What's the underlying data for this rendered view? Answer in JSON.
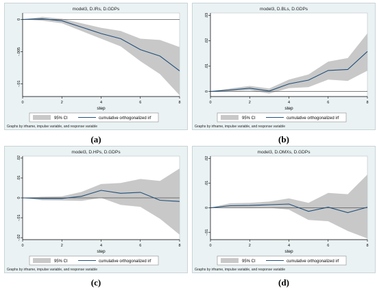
{
  "legend": {
    "ci_label": "95% CI",
    "irf_label": "cumulative orthogonalized irf"
  },
  "x_axis_title": "step",
  "footnote": "Graphs by irfname, impulse variable, and response variable",
  "colors": {
    "panel_bg": "#eaf2f3",
    "plot_bg": "#ffffff",
    "ci_fill": "#c8c8c8",
    "irf_line": "#1f4e79",
    "zero_line": "#555555",
    "axis": "#000000"
  },
  "chart_data": [
    {
      "type": "line",
      "caption": "(a)",
      "title": "model3, D.IRs, D.GDPs",
      "x": [
        0,
        1,
        2,
        3,
        4,
        5,
        6,
        7,
        8
      ],
      "xticks": [
        0,
        2,
        4,
        6,
        8
      ],
      "ylim": [
        -0.012,
        0.001
      ],
      "yticks": [
        0,
        -0.005,
        -0.01
      ],
      "ytick_labels": [
        "0",
        "-.005",
        "-.01"
      ],
      "series": [
        {
          "values": [
            0,
            0.0001,
            -0.0002,
            -0.0012,
            -0.0022,
            -0.003,
            -0.0047,
            -0.0057,
            -0.008
          ]
        }
      ],
      "ci_lower": [
        0,
        -0.0002,
        -0.0006,
        -0.0018,
        -0.003,
        -0.0042,
        -0.0065,
        -0.0085,
        -0.0118
      ],
      "ci_upper": [
        0,
        0.0004,
        0.0001,
        -0.0006,
        -0.0013,
        -0.0018,
        -0.003,
        -0.0032,
        -0.0043
      ]
    },
    {
      "type": "line",
      "caption": "(b)",
      "title": "model3, D.BLs, D.GDPs",
      "x": [
        0,
        1,
        2,
        3,
        4,
        5,
        6,
        7,
        8
      ],
      "xticks": [
        0,
        2,
        4,
        6,
        8
      ],
      "ylim": [
        -0.002,
        0.031
      ],
      "yticks": [
        0,
        0.01,
        0.02,
        0.03
      ],
      "ytick_labels": [
        "0",
        ".01",
        ".02",
        ".03"
      ],
      "series": [
        {
          "values": [
            0,
            0.0006,
            0.0013,
            0.0002,
            0.003,
            0.0045,
            0.0083,
            0.0087,
            0.0158
          ]
        }
      ],
      "ci_lower": [
        0,
        0.0001,
        0.0005,
        -0.0008,
        0.0013,
        0.0017,
        0.0047,
        0.0042,
        0.0082
      ],
      "ci_upper": [
        0,
        0.0012,
        0.0022,
        0.0012,
        0.0047,
        0.0067,
        0.0118,
        0.0132,
        0.023
      ]
    },
    {
      "type": "line",
      "caption": "(c)",
      "title": "model3, D.HPs, D.GDPs",
      "x": [
        0,
        1,
        2,
        3,
        4,
        5,
        6,
        7,
        8
      ],
      "xticks": [
        0,
        2,
        4,
        6,
        8
      ],
      "ylim": [
        -0.021,
        0.021
      ],
      "yticks": [
        0.02,
        0.01,
        0,
        -0.01,
        -0.02
      ],
      "ytick_labels": [
        ".02",
        ".01",
        "0",
        "-.01",
        "-.02"
      ],
      "series": [
        {
          "values": [
            0,
            -0.0003,
            -0.0003,
            0.0008,
            0.0038,
            0.0023,
            0.0028,
            -0.0012,
            -0.0018
          ]
        }
      ],
      "ci_lower": [
        0,
        -0.0012,
        -0.0013,
        -0.0015,
        0.0,
        -0.0035,
        -0.0045,
        -0.0105,
        -0.0185
      ],
      "ci_upper": [
        0,
        0.0006,
        0.0008,
        0.003,
        0.007,
        0.0075,
        0.0095,
        0.0085,
        0.0148
      ]
    },
    {
      "type": "line",
      "caption": "(d)",
      "title": "model3, D.OMXs, D.GDPs",
      "x": [
        0,
        1,
        2,
        3,
        4,
        5,
        6,
        7,
        8
      ],
      "xticks": [
        0,
        2,
        4,
        6,
        8
      ],
      "ylim": [
        -0.013,
        0.021
      ],
      "yticks": [
        0.02,
        0.01,
        0,
        -0.01
      ],
      "ytick_labels": [
        ".02",
        ".01",
        "0",
        "-.01"
      ],
      "series": [
        {
          "values": [
            0,
            0.0008,
            0.0009,
            0.0012,
            0.0015,
            -0.0015,
            0.0002,
            -0.002,
            0.0002
          ]
        }
      ],
      "ci_lower": [
        0,
        0.0001,
        -0.0001,
        0.0,
        -0.0008,
        -0.005,
        -0.0055,
        -0.0095,
        -0.0125
      ],
      "ci_upper": [
        0,
        0.0018,
        0.002,
        0.0025,
        0.0038,
        0.002,
        0.006,
        0.0055,
        0.0135
      ]
    }
  ]
}
